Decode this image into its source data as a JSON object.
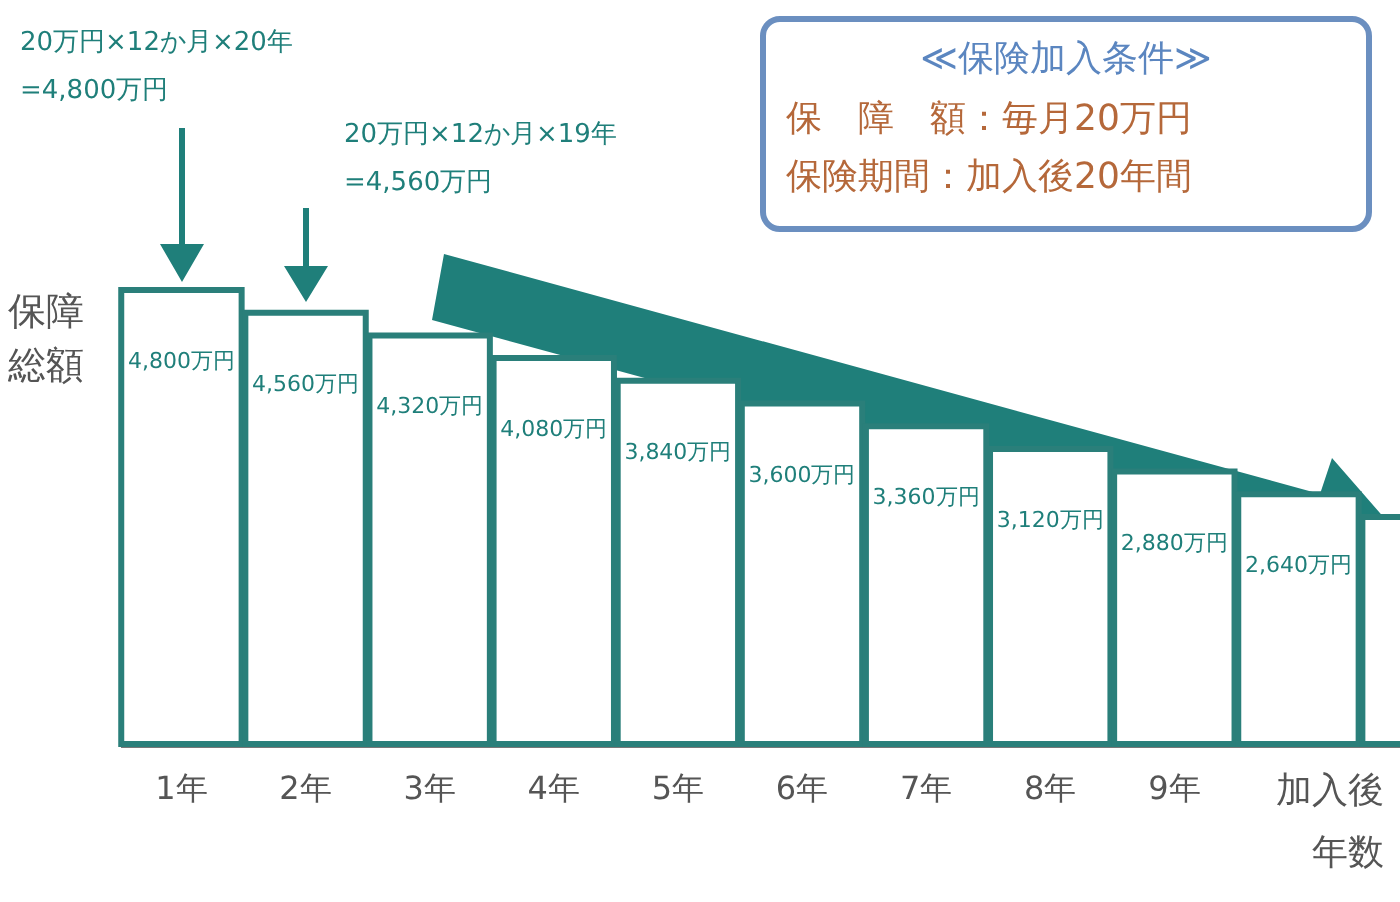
{
  "chart_data": {
    "type": "bar",
    "xlabel": "加入後年数",
    "ylabel": "保障総額",
    "categories": [
      "1年",
      "2年",
      "3年",
      "4年",
      "5年",
      "6年",
      "7年",
      "8年",
      "9年",
      null,
      null
    ],
    "values": [
      4800,
      4560,
      4320,
      4080,
      3840,
      3600,
      3360,
      3120,
      2880,
      2640,
      2400
    ],
    "color": "#ffffff",
    "value_labels": [
      "4,800万円",
      "4,560万円",
      "4,320万円",
      "4,080万円",
      "3,840万円",
      "3,600万円",
      "3,360万円",
      "3,120万円",
      "2,880万円",
      "2,640万円",
      null
    ],
    "annotations": [
      "20万円×12か月×20年\n=4,800万円",
      "20万円×12か月×19年\n=4,560万円",
      "≪保険加入条件≫",
      "保　障　額：毎月20万円",
      "保険期間：加入後20年間"
    ]
  }
}
